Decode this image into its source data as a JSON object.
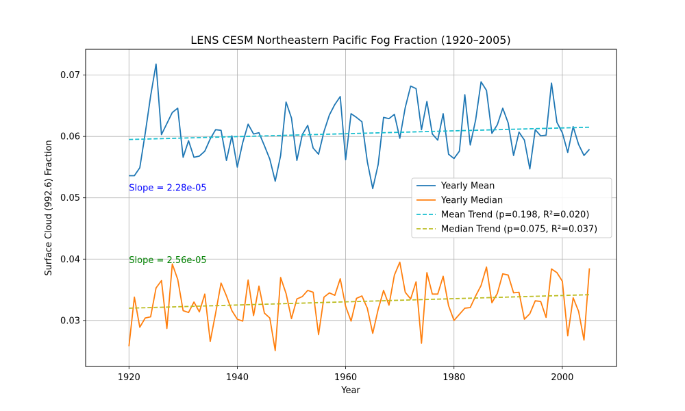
{
  "chart_data": {
    "type": "line",
    "title": "LENS CESM Northeastern Pacific Fog Fraction (1920–2005)",
    "xlabel": "Year",
    "ylabel": "Surface Cloud (992.6) Fraction",
    "xlim": [
      1912,
      2010
    ],
    "ylim": [
      0.0225,
      0.0742
    ],
    "xticks": [
      1920,
      1940,
      1960,
      1980,
      2000
    ],
    "yticks": [
      0.03,
      0.04,
      0.05,
      0.06,
      0.07
    ],
    "ytick_labels": [
      "0.03",
      "0.04",
      "0.05",
      "0.06",
      "0.07"
    ],
    "grid": true,
    "legend_position": "center-right",
    "x": [
      1920,
      1921,
      1922,
      1923,
      1924,
      1925,
      1926,
      1927,
      1928,
      1929,
      1930,
      1931,
      1932,
      1933,
      1934,
      1935,
      1936,
      1937,
      1938,
      1939,
      1940,
      1941,
      1942,
      1943,
      1944,
      1945,
      1946,
      1947,
      1948,
      1949,
      1950,
      1951,
      1952,
      1953,
      1954,
      1955,
      1956,
      1957,
      1958,
      1959,
      1960,
      1961,
      1962,
      1963,
      1964,
      1965,
      1966,
      1967,
      1968,
      1969,
      1970,
      1971,
      1972,
      1973,
      1974,
      1975,
      1976,
      1977,
      1978,
      1979,
      1980,
      1981,
      1982,
      1983,
      1984,
      1985,
      1986,
      1987,
      1988,
      1989,
      1990,
      1991,
      1992,
      1993,
      1994,
      1995,
      1996,
      1997,
      1998,
      1999,
      2000,
      2001,
      2002,
      2003,
      2004,
      2005
    ],
    "series": [
      {
        "name": "Yearly Mean",
        "color": "#1f77b4",
        "style": "solid",
        "values": [
          0.0536,
          0.0536,
          0.0549,
          0.0605,
          0.0666,
          0.0718,
          0.0603,
          0.0621,
          0.0639,
          0.0646,
          0.0566,
          0.0593,
          0.0566,
          0.0568,
          0.0576,
          0.0596,
          0.0611,
          0.061,
          0.0561,
          0.0601,
          0.055,
          0.059,
          0.062,
          0.0604,
          0.0606,
          0.0585,
          0.0563,
          0.0527,
          0.0569,
          0.0656,
          0.063,
          0.0561,
          0.0603,
          0.0618,
          0.0581,
          0.0571,
          0.0608,
          0.0635,
          0.0652,
          0.0665,
          0.0562,
          0.0637,
          0.0631,
          0.0624,
          0.0559,
          0.0515,
          0.0554,
          0.0631,
          0.0629,
          0.0636,
          0.0597,
          0.0647,
          0.0682,
          0.0678,
          0.0611,
          0.0657,
          0.0604,
          0.0594,
          0.0637,
          0.0571,
          0.0564,
          0.0576,
          0.0668,
          0.0586,
          0.0627,
          0.0689,
          0.0675,
          0.0605,
          0.0619,
          0.0646,
          0.0622,
          0.0569,
          0.0607,
          0.0594,
          0.0547,
          0.0611,
          0.0601,
          0.0602,
          0.0687,
          0.0623,
          0.0606,
          0.0574,
          0.0616,
          0.0587,
          0.0569,
          0.0579
        ]
      },
      {
        "name": "Yearly Median",
        "color": "#ff7f0e",
        "style": "solid",
        "values": [
          0.0258,
          0.0338,
          0.0289,
          0.0304,
          0.0306,
          0.0353,
          0.0365,
          0.0287,
          0.0392,
          0.0367,
          0.0316,
          0.0313,
          0.033,
          0.0314,
          0.0343,
          0.0266,
          0.0312,
          0.0361,
          0.034,
          0.0316,
          0.0302,
          0.0299,
          0.0366,
          0.0308,
          0.0356,
          0.0312,
          0.0304,
          0.0251,
          0.037,
          0.0344,
          0.0303,
          0.0335,
          0.0339,
          0.0349,
          0.0346,
          0.0277,
          0.0338,
          0.0345,
          0.0341,
          0.0368,
          0.0323,
          0.0299,
          0.0336,
          0.034,
          0.032,
          0.0279,
          0.0318,
          0.0349,
          0.0325,
          0.0374,
          0.0395,
          0.0346,
          0.0335,
          0.0363,
          0.0263,
          0.0378,
          0.0343,
          0.0343,
          0.0372,
          0.0324,
          0.03,
          0.031,
          0.032,
          0.0321,
          0.034,
          0.0357,
          0.0387,
          0.0329,
          0.0344,
          0.0376,
          0.0374,
          0.0345,
          0.0346,
          0.0302,
          0.0311,
          0.0332,
          0.0331,
          0.0305,
          0.0384,
          0.0378,
          0.0364,
          0.0275,
          0.0337,
          0.0315,
          0.0268,
          0.0385
        ]
      }
    ],
    "trends": [
      {
        "name": "Mean Trend (p=0.198, R²=0.020)",
        "color": "#17becf",
        "style": "dashed",
        "x": [
          1920,
          2005
        ],
        "y": [
          0.0595,
          0.0615
        ]
      },
      {
        "name": "Median Trend (p=0.075, R²=0.037)",
        "color": "#bcbd22",
        "style": "dashed",
        "x": [
          1920,
          2005
        ],
        "y": [
          0.032,
          0.0342
        ]
      }
    ],
    "annotations": [
      {
        "text": "Slope = 2.28e-05",
        "color": "#0000ff",
        "x": 1920,
        "y": 0.0517
      },
      {
        "text": "Slope = 2.56e-05",
        "color": "#008000",
        "x": 1920,
        "y": 0.0399
      }
    ]
  }
}
